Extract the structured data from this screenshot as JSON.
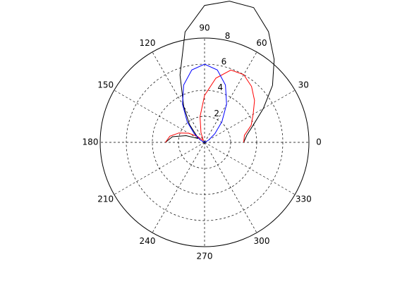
{
  "chart_data": {
    "type": "polar",
    "theta": [
      0,
      10,
      20,
      30,
      40,
      50,
      60,
      70,
      80,
      90,
      100,
      110,
      120,
      130,
      140,
      150,
      160,
      170,
      180
    ],
    "series": [
      {
        "color": "#000000",
        "values": [
          3,
          3.3,
          4,
          5.2,
          6.8,
          8.3,
          9.8,
          11,
          11,
          10.5,
          8.6,
          5.5,
          3.2,
          1.8,
          0.8,
          0.6,
          1.5,
          2.5,
          3
        ]
      },
      {
        "color": "#ff0000",
        "values": [
          3,
          3.1,
          3.8,
          4.3,
          5,
          5.6,
          6,
          5.9,
          5,
          3.6,
          2,
          0.8,
          0.2,
          0.2,
          0.7,
          1.4,
          2.1,
          2.7,
          3
        ]
      },
      {
        "color": "#0000ff",
        "values": [
          0,
          0.01,
          0.08,
          0.38,
          1.03,
          2.07,
          3.38,
          4.68,
          5.64,
          6,
          5.64,
          4.68,
          3.38,
          2.07,
          1.03,
          0.38,
          0.08,
          0.01,
          0
        ]
      }
    ],
    "rlim": [
      0,
      8
    ],
    "rticks": [
      2,
      4,
      6,
      8
    ],
    "thetaticks": [
      0,
      30,
      60,
      90,
      120,
      150,
      180,
      210,
      240,
      270,
      300,
      330
    ],
    "grid": true
  }
}
